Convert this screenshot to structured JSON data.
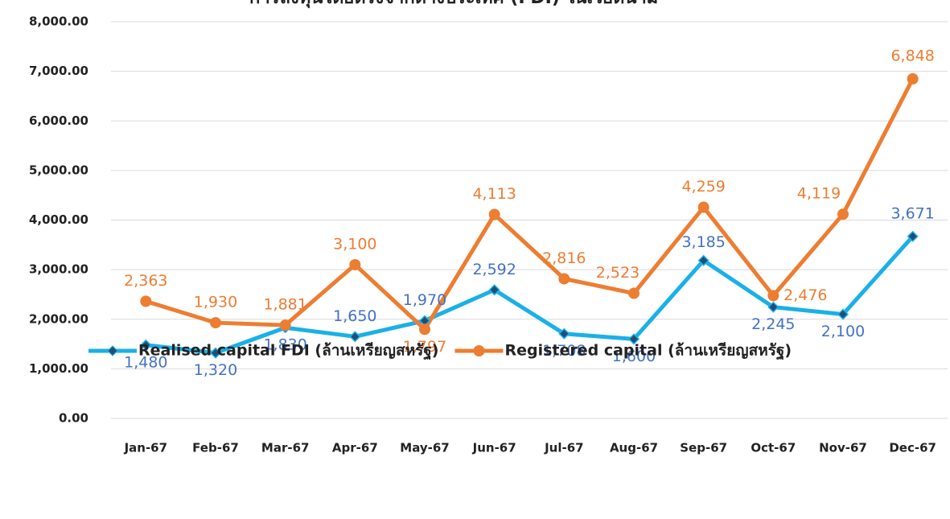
{
  "chart_data": {
    "type": "line",
    "title": "การลงทุนโดยตรงจากต่างประเทศ (FDI) ในเวียดนาม",
    "categories": [
      "Jan-67",
      "Feb-67",
      "Mar-67",
      "Apr-67",
      "May-67",
      "Jun-67",
      "Jul-67",
      "Aug-67",
      "Sep-67",
      "Oct-67",
      "Nov-67",
      "Dec-67"
    ],
    "series": [
      {
        "name": "Realised capital FDI (ล้านเหรียญสหรัฐ)",
        "color": "#1ab0e8",
        "label_color": "#4472c4",
        "marker": "diamond",
        "values": [
          1480,
          1320,
          1830,
          1650,
          1970,
          2592,
          1708,
          1600,
          3185,
          2245,
          2100,
          3671
        ],
        "value_labels": [
          "1,480",
          "1,320",
          "1,830",
          "1,650",
          "1,970",
          "2,592",
          "1,708",
          "1,600",
          "3,185",
          "2,245",
          "2,100",
          "3,671"
        ]
      },
      {
        "name": "Registered capital (ล้านเหรียญสหรัฐ)",
        "color": "#ed7d31",
        "label_color": "#ed7d31",
        "marker": "circle",
        "values": [
          2363,
          1930,
          1881,
          3100,
          1797,
          4113,
          2816,
          2523,
          4259,
          2476,
          4119,
          6848
        ],
        "value_labels": [
          "2,363",
          "1,930",
          "1,881",
          "3,100",
          "1,797",
          "4,113",
          "2,816",
          "2,523",
          "4,259",
          "2,476",
          "4,119",
          "6,848"
        ]
      }
    ],
    "ylim": [
      0,
      8000
    ],
    "yticks": [
      {
        "value": 0,
        "label": "0.00"
      },
      {
        "value": 1000,
        "label": "1,000.00"
      },
      {
        "value": 2000,
        "label": "2,000.00"
      },
      {
        "value": 3000,
        "label": "3,000.00"
      },
      {
        "value": 4000,
        "label": "4,000.00"
      },
      {
        "value": 5000,
        "label": "5,000.00"
      },
      {
        "value": 6000,
        "label": "6,000.00"
      },
      {
        "value": 7000,
        "label": "7,000.00"
      },
      {
        "value": 8000,
        "label": "8,000.00"
      }
    ],
    "grid": true,
    "legend": "bottom"
  }
}
